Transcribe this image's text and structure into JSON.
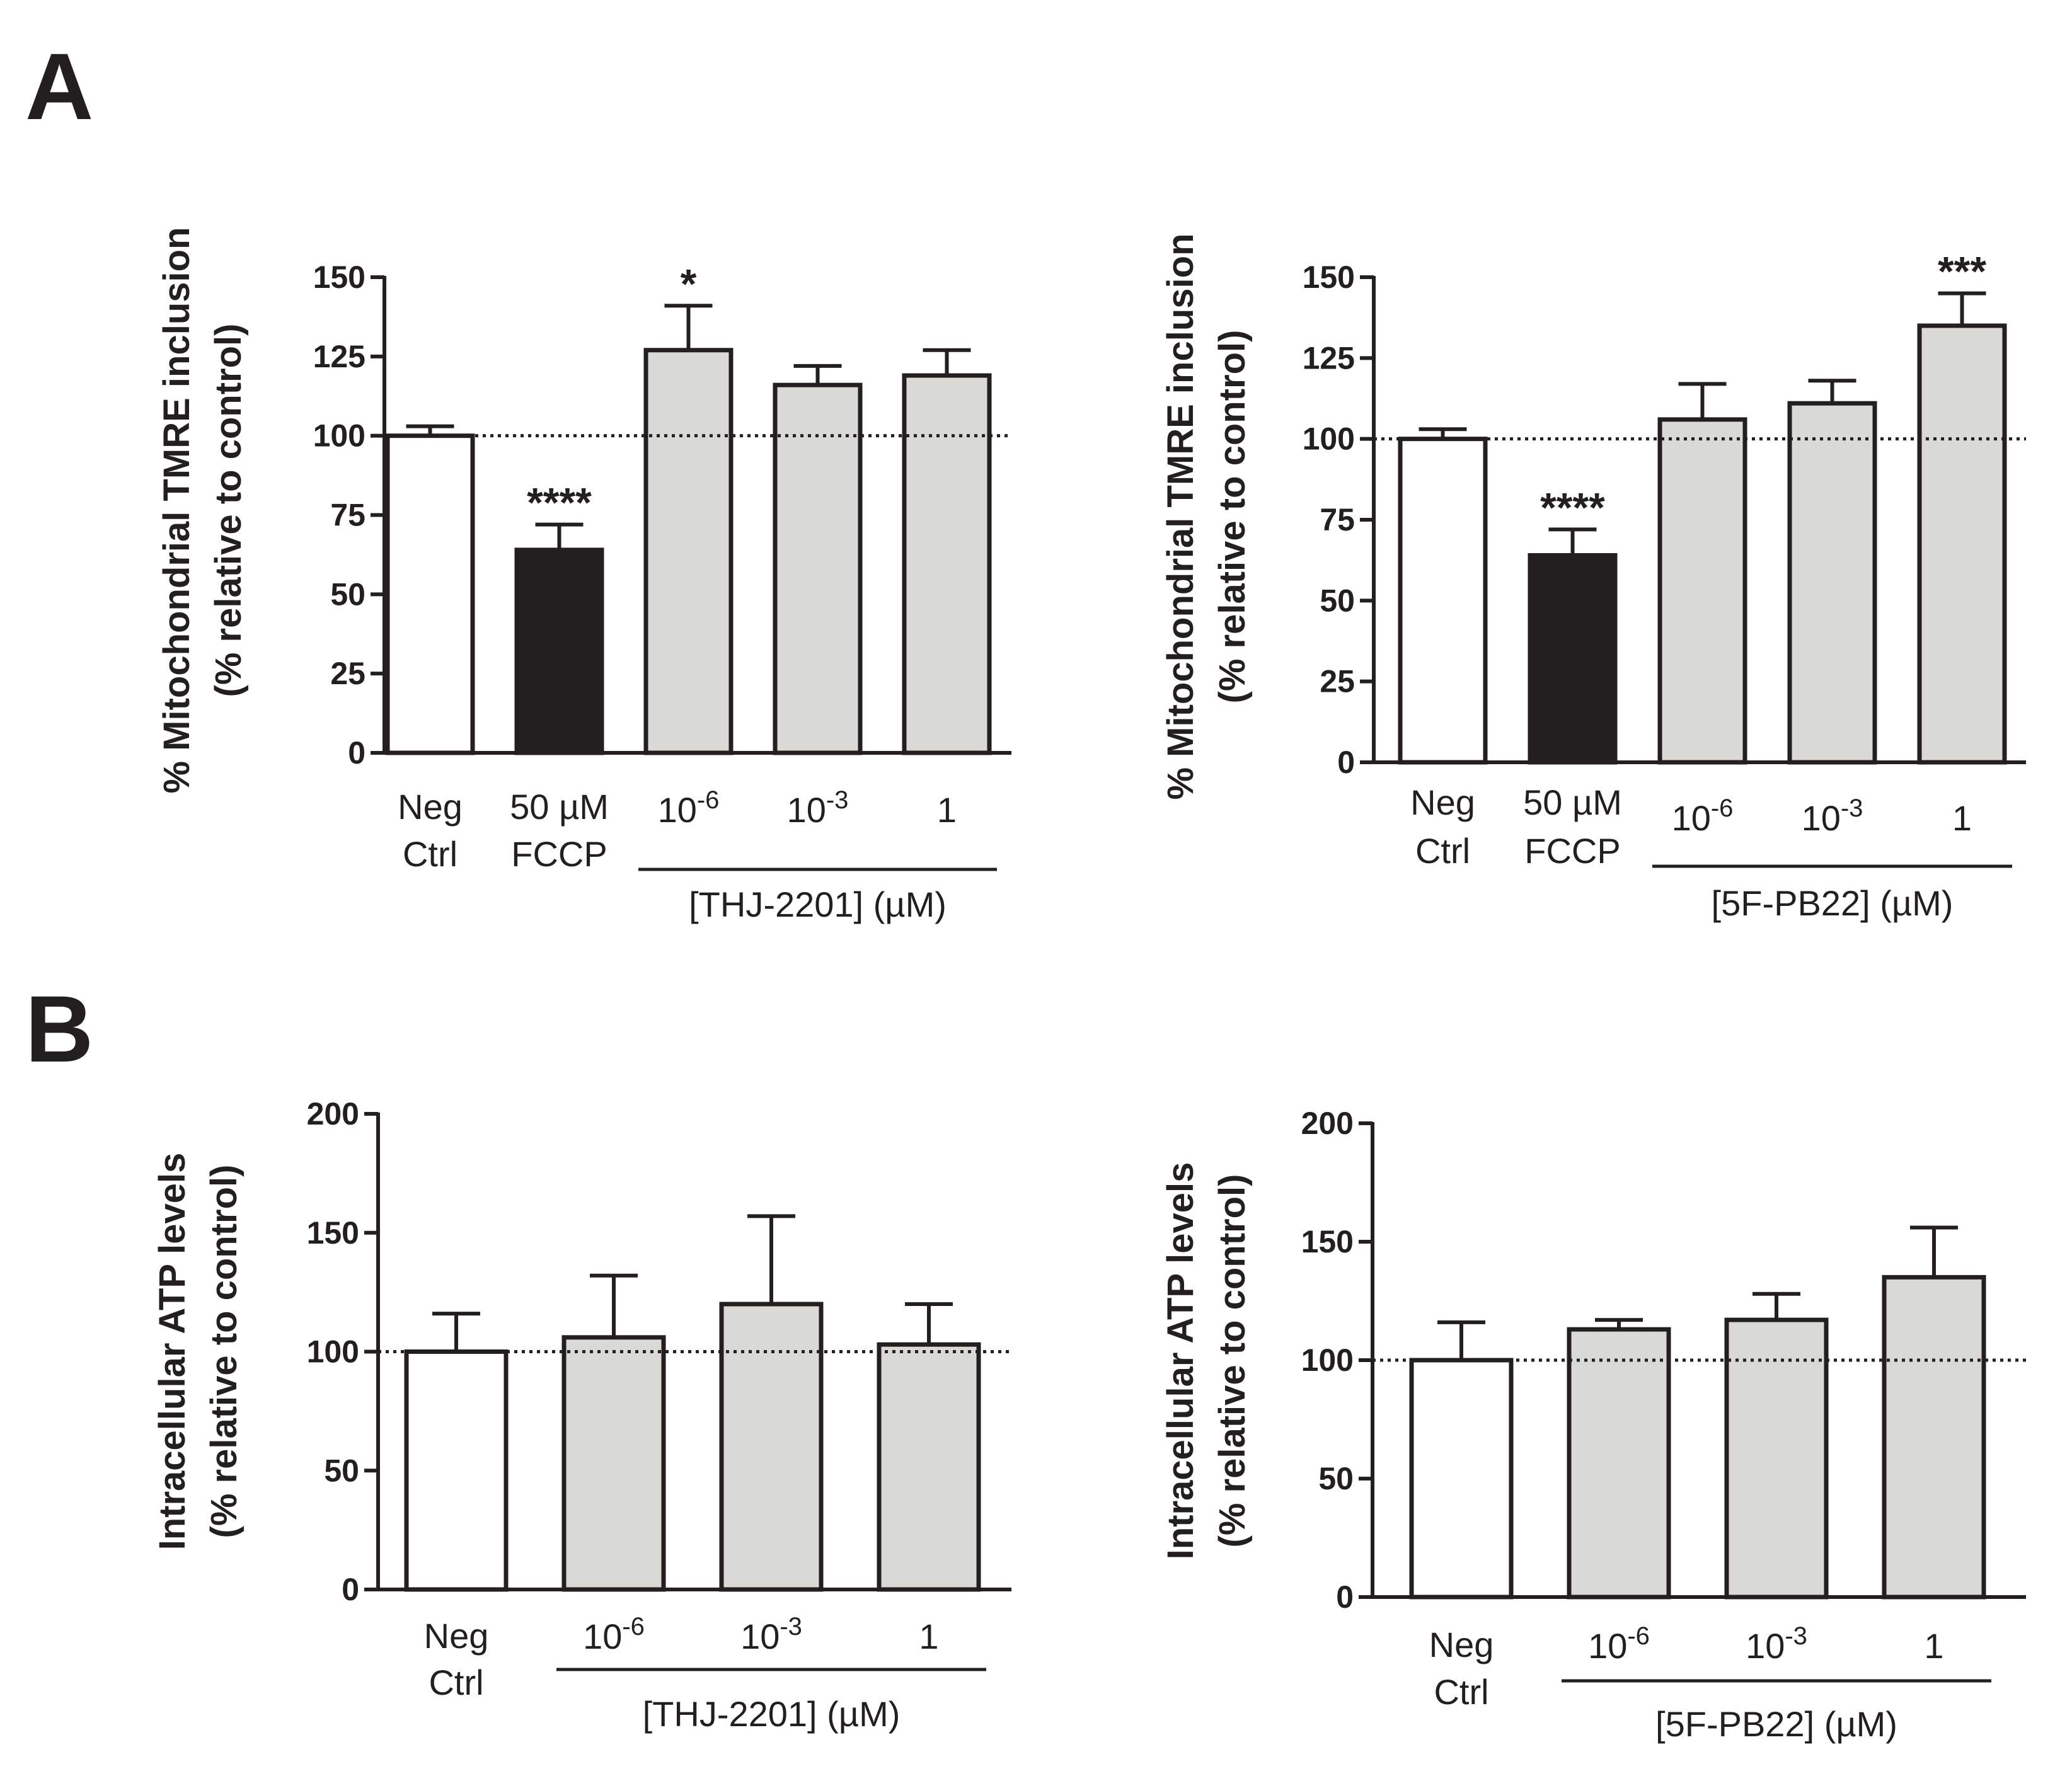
{
  "panel_labels": {
    "a": "A",
    "b": "B"
  },
  "colors": {
    "white_bar": "#ffffff",
    "black_bar": "#231f20",
    "gray_bar": "#d9d9d6",
    "stroke": "#231f20"
  },
  "chart_data": [
    {
      "type": "bar",
      "panel": "A",
      "ylabel": [
        "% Mitochondrial TMRE inclusion",
        "(% relative to control)"
      ],
      "ylim": [
        0,
        150
      ],
      "yticks": [
        0,
        25,
        50,
        75,
        100,
        125,
        150
      ],
      "reference_line": 100,
      "categories": [
        {
          "lines": [
            "Neg",
            "Ctrl"
          ]
        },
        {
          "lines": [
            "50 µM",
            "FCCP"
          ]
        },
        {
          "base": "10",
          "exp": "-6"
        },
        {
          "base": "10",
          "exp": "-3"
        },
        {
          "base": "1",
          "exp": ""
        }
      ],
      "values": [
        100,
        64,
        127,
        116,
        119
      ],
      "errors": [
        3,
        8,
        14,
        6,
        8
      ],
      "fills": [
        "white",
        "black",
        "gray",
        "gray",
        "gray"
      ],
      "significance": [
        "",
        "****",
        "*",
        "",
        ""
      ],
      "group_label": "[THJ-2201] (µM)",
      "group_range": [
        2,
        4
      ]
    },
    {
      "type": "bar",
      "panel": "A",
      "ylabel": [
        "% Mitochondrial TMRE inclusion",
        "(% relative to control)"
      ],
      "ylim": [
        0,
        150
      ],
      "yticks": [
        0,
        25,
        50,
        75,
        100,
        125,
        150
      ],
      "reference_line": 100,
      "categories": [
        {
          "lines": [
            "Neg",
            "Ctrl"
          ]
        },
        {
          "lines": [
            "50 µM",
            "FCCP"
          ]
        },
        {
          "base": "10",
          "exp": "-6"
        },
        {
          "base": "10",
          "exp": "-3"
        },
        {
          "base": "1",
          "exp": ""
        }
      ],
      "values": [
        100,
        64,
        106,
        111,
        135
      ],
      "errors": [
        3,
        8,
        11,
        7,
        10
      ],
      "fills": [
        "white",
        "black",
        "gray",
        "gray",
        "gray"
      ],
      "significance": [
        "",
        "****",
        "",
        "",
        "***"
      ],
      "group_label": "[5F-PB22] (µM)",
      "group_range": [
        2,
        4
      ]
    },
    {
      "type": "bar",
      "panel": "B",
      "ylabel": [
        "Intracellular ATP levels",
        "(% relative to control)"
      ],
      "ylim": [
        0,
        200
      ],
      "yticks": [
        0,
        50,
        100,
        150,
        200
      ],
      "reference_line": 100,
      "categories": [
        {
          "lines": [
            "Neg",
            "Ctrl"
          ]
        },
        {
          "base": "10",
          "exp": "-6"
        },
        {
          "base": "10",
          "exp": "-3"
        },
        {
          "base": "1",
          "exp": ""
        }
      ],
      "values": [
        100,
        106,
        120,
        103
      ],
      "errors": [
        16,
        26,
        37,
        17
      ],
      "fills": [
        "white",
        "gray",
        "gray",
        "gray"
      ],
      "significance": [
        "",
        "",
        "",
        ""
      ],
      "group_label": "[THJ-2201] (µM)",
      "group_range": [
        1,
        3
      ]
    },
    {
      "type": "bar",
      "panel": "B",
      "ylabel": [
        "Intracellular ATP levels",
        "(% relative to control)"
      ],
      "ylim": [
        0,
        200
      ],
      "yticks": [
        0,
        50,
        100,
        150,
        200
      ],
      "reference_line": 100,
      "categories": [
        {
          "lines": [
            "Neg",
            "Ctrl"
          ]
        },
        {
          "base": "10",
          "exp": "-6"
        },
        {
          "base": "10",
          "exp": "-3"
        },
        {
          "base": "1",
          "exp": ""
        }
      ],
      "values": [
        100,
        113,
        117,
        135
      ],
      "errors": [
        16,
        4,
        11,
        21
      ],
      "fills": [
        "white",
        "gray",
        "gray",
        "gray"
      ],
      "significance": [
        "",
        "",
        "",
        ""
      ],
      "group_label": "[5F-PB22] (µM)",
      "group_range": [
        1,
        3
      ]
    }
  ]
}
